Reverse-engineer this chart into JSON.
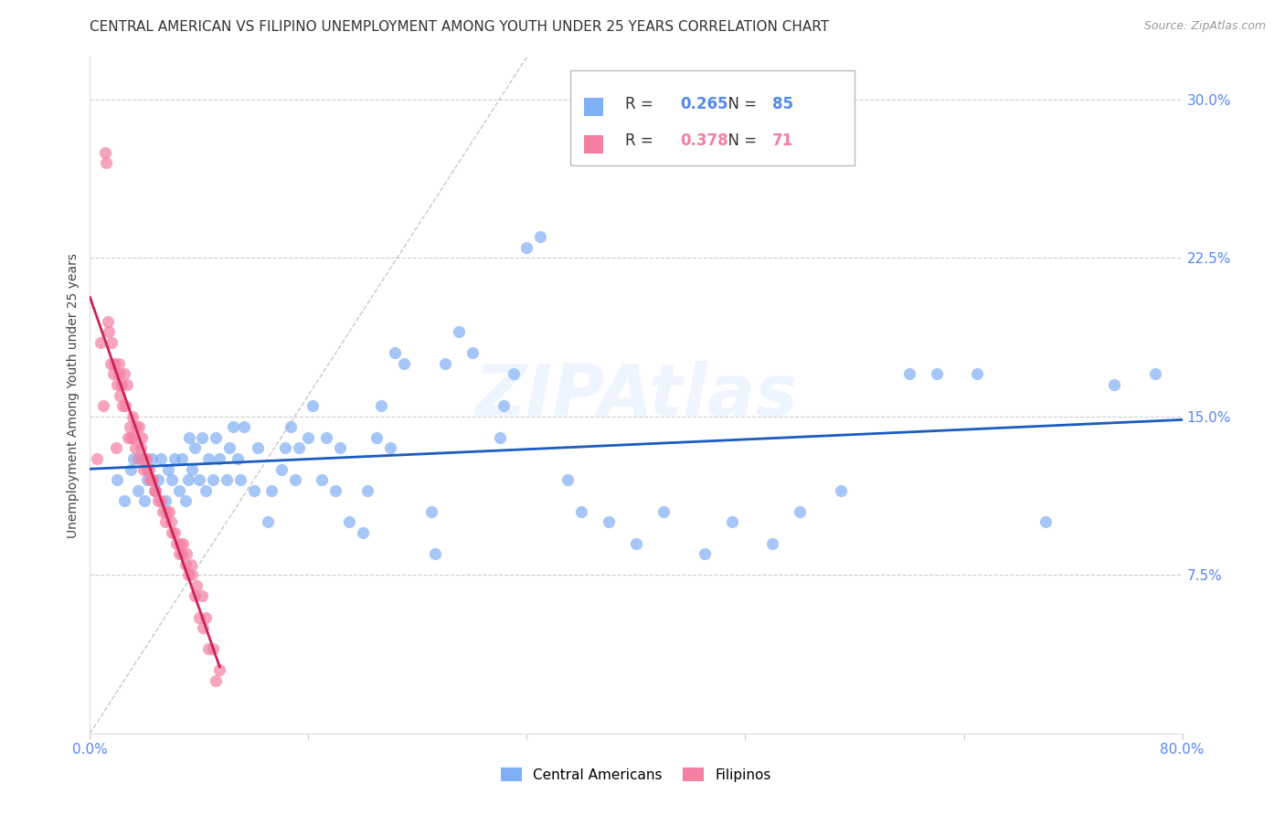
{
  "title": "CENTRAL AMERICAN VS FILIPINO UNEMPLOYMENT AMONG YOUTH UNDER 25 YEARS CORRELATION CHART",
  "source": "Source: ZipAtlas.com",
  "ylabel": "Unemployment Among Youth under 25 years",
  "xlim": [
    0.0,
    0.8
  ],
  "ylim": [
    0.0,
    0.32
  ],
  "yticks": [
    0.075,
    0.15,
    0.225,
    0.3
  ],
  "ytick_labels": [
    "7.5%",
    "15.0%",
    "22.5%",
    "30.0%"
  ],
  "blue_color": "#7faff5",
  "pink_color": "#f57fa0",
  "trend_blue": "#1a5cbf",
  "trend_pink": "#cc2255",
  "legend1_r": "0.265",
  "legend1_n": "85",
  "legend2_r": "0.378",
  "legend2_n": "71",
  "label1": "Central Americans",
  "label2": "Filipinos",
  "background_color": "#ffffff",
  "grid_color": "#cccccc",
  "tick_label_color": "#5588ee",
  "ca_x": [
    0.02,
    0.025,
    0.03,
    0.032,
    0.035,
    0.038,
    0.04,
    0.042,
    0.045,
    0.048,
    0.05,
    0.052,
    0.055,
    0.057,
    0.06,
    0.062,
    0.065,
    0.067,
    0.07,
    0.072,
    0.073,
    0.075,
    0.077,
    0.08,
    0.082,
    0.085,
    0.087,
    0.09,
    0.092,
    0.095,
    0.1,
    0.102,
    0.105,
    0.108,
    0.11,
    0.113,
    0.12,
    0.123,
    0.13,
    0.133,
    0.14,
    0.143,
    0.147,
    0.15,
    0.153,
    0.16,
    0.163,
    0.17,
    0.173,
    0.18,
    0.183,
    0.19,
    0.2,
    0.203,
    0.21,
    0.213,
    0.22,
    0.223,
    0.23,
    0.25,
    0.253,
    0.26,
    0.27,
    0.28,
    0.3,
    0.303,
    0.31,
    0.32,
    0.33,
    0.35,
    0.36,
    0.38,
    0.4,
    0.42,
    0.45,
    0.47,
    0.5,
    0.52,
    0.55,
    0.6,
    0.62,
    0.65,
    0.7,
    0.75,
    0.78
  ],
  "ca_y": [
    0.12,
    0.11,
    0.125,
    0.13,
    0.115,
    0.13,
    0.11,
    0.12,
    0.13,
    0.115,
    0.12,
    0.13,
    0.11,
    0.125,
    0.12,
    0.13,
    0.115,
    0.13,
    0.11,
    0.12,
    0.14,
    0.125,
    0.135,
    0.12,
    0.14,
    0.115,
    0.13,
    0.12,
    0.14,
    0.13,
    0.12,
    0.135,
    0.145,
    0.13,
    0.12,
    0.145,
    0.115,
    0.135,
    0.1,
    0.115,
    0.125,
    0.135,
    0.145,
    0.12,
    0.135,
    0.14,
    0.155,
    0.12,
    0.14,
    0.115,
    0.135,
    0.1,
    0.095,
    0.115,
    0.14,
    0.155,
    0.135,
    0.18,
    0.175,
    0.105,
    0.085,
    0.175,
    0.19,
    0.18,
    0.14,
    0.155,
    0.17,
    0.23,
    0.235,
    0.12,
    0.105,
    0.1,
    0.09,
    0.105,
    0.085,
    0.1,
    0.09,
    0.105,
    0.115,
    0.17,
    0.17,
    0.17,
    0.1,
    0.165,
    0.17
  ],
  "fil_x": [
    0.005,
    0.008,
    0.01,
    0.011,
    0.012,
    0.013,
    0.014,
    0.015,
    0.016,
    0.017,
    0.018,
    0.019,
    0.02,
    0.021,
    0.021,
    0.022,
    0.023,
    0.024,
    0.025,
    0.026,
    0.027,
    0.028,
    0.029,
    0.03,
    0.031,
    0.032,
    0.033,
    0.034,
    0.035,
    0.036,
    0.037,
    0.038,
    0.039,
    0.04,
    0.041,
    0.042,
    0.043,
    0.044,
    0.045,
    0.046,
    0.047,
    0.048,
    0.05,
    0.052,
    0.053,
    0.055,
    0.056,
    0.058,
    0.059,
    0.06,
    0.062,
    0.063,
    0.065,
    0.066,
    0.067,
    0.068,
    0.07,
    0.071,
    0.072,
    0.074,
    0.075,
    0.077,
    0.078,
    0.08,
    0.082,
    0.083,
    0.085,
    0.087,
    0.09,
    0.092,
    0.095
  ],
  "fil_y": [
    0.13,
    0.185,
    0.155,
    0.275,
    0.27,
    0.195,
    0.19,
    0.175,
    0.185,
    0.17,
    0.175,
    0.135,
    0.165,
    0.175,
    0.17,
    0.16,
    0.165,
    0.155,
    0.17,
    0.155,
    0.165,
    0.14,
    0.145,
    0.14,
    0.15,
    0.14,
    0.135,
    0.145,
    0.13,
    0.145,
    0.135,
    0.14,
    0.125,
    0.13,
    0.13,
    0.125,
    0.125,
    0.12,
    0.12,
    0.12,
    0.115,
    0.115,
    0.11,
    0.11,
    0.105,
    0.1,
    0.105,
    0.105,
    0.1,
    0.095,
    0.095,
    0.09,
    0.085,
    0.09,
    0.085,
    0.09,
    0.08,
    0.085,
    0.075,
    0.08,
    0.075,
    0.065,
    0.07,
    0.055,
    0.065,
    0.05,
    0.055,
    0.04,
    0.04,
    0.025,
    0.03
  ],
  "title_fontsize": 11,
  "ylabel_fontsize": 10,
  "tick_fontsize": 11,
  "legend_fontsize": 12
}
